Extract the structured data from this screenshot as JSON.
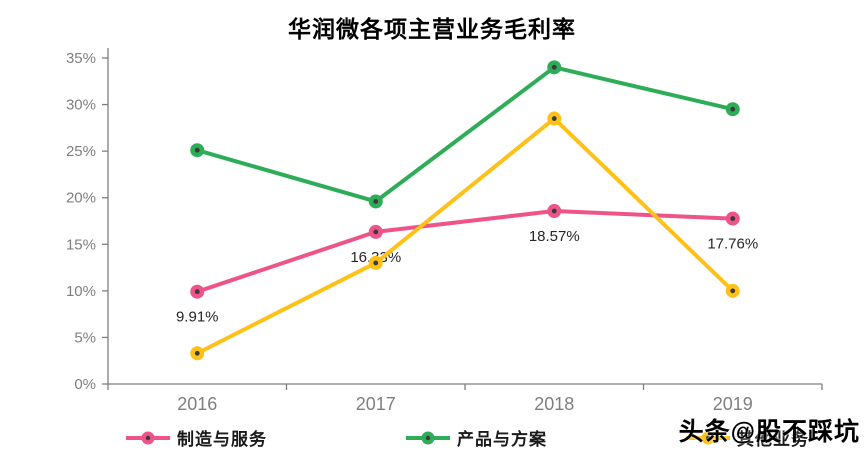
{
  "title": "华润微各项主营业务毛利率",
  "watermark": "头条@股不踩坑",
  "chart_data": {
    "type": "line",
    "title": "华润微各项主营业务毛利率",
    "categories": [
      "2016",
      "2017",
      "2018",
      "2019"
    ],
    "y_tick_labels": [
      "0%",
      "5%",
      "10%",
      "15%",
      "20%",
      "25%",
      "30%",
      "35%"
    ],
    "ylim": [
      0,
      35
    ],
    "ytick_step": 5,
    "grid": false,
    "legend_position": "bottom",
    "axis_color": "#7f7f7f",
    "point_label_color": "#262626",
    "marker_center_color": "#3a3a3a",
    "series": [
      {
        "name": "制造与服务",
        "color": "#EE538A",
        "values": [
          9.91,
          16.33,
          18.57,
          17.76
        ],
        "point_labels": [
          "9.91%",
          "16.33%",
          "18.57%",
          "17.76%"
        ]
      },
      {
        "name": "产品与方案",
        "color": "#2EAD58",
        "values": [
          25.1,
          19.6,
          34.0,
          29.5
        ],
        "point_labels": []
      },
      {
        "name": "其他业务",
        "color": "#FFC117",
        "values": [
          3.3,
          13.0,
          28.5,
          10.0
        ],
        "point_labels": []
      }
    ]
  }
}
